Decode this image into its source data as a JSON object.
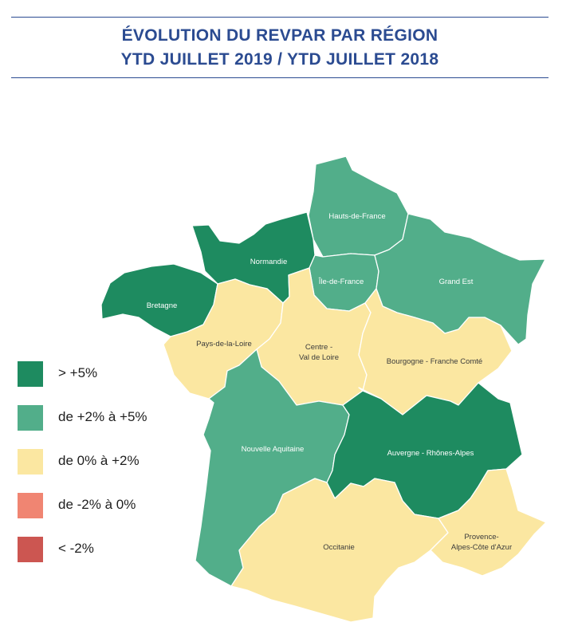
{
  "header": {
    "title_line1": "ÉVOLUTION DU REVPAR PAR RÉGION",
    "title_line2": "YTD JUILLET 2019 / YTD JUILLET 2018"
  },
  "colors": {
    "gt5": "#1e8b60",
    "2to5": "#52ae8a",
    "0to2": "#fbe7a1",
    "m2to0": "#f08572",
    "ltm2": "#cc5651"
  },
  "legend": [
    {
      "key": "gt5",
      "label": "> +5%"
    },
    {
      "key": "2to5",
      "label": "de +2% à +5%"
    },
    {
      "key": "0to2",
      "label": "de 0% à +2%"
    },
    {
      "key": "m2to0",
      "label": "de -2% à 0%"
    },
    {
      "key": "ltm2",
      "label": "< -2%"
    }
  ],
  "regions": {
    "hauts_de_france": {
      "name": "Hauts-de-France",
      "class": "2to5"
    },
    "normandie": {
      "name": "Normandie",
      "class": "gt5"
    },
    "bretagne": {
      "name": "Bretagne",
      "class": "gt5"
    },
    "ile_de_france": {
      "name": "Île-de-France",
      "class": "2to5"
    },
    "grand_est": {
      "name": "Grand Est",
      "class": "2to5"
    },
    "pays_de_la_loire": {
      "name": "Pays-de-la-Loire",
      "class": "0to2"
    },
    "centre_val_de_loire": {
      "name_line1": "Centre -",
      "name_line2": "Val de Loire",
      "class": "0to2"
    },
    "bourgogne_franche_comte": {
      "name": "Bourgogne - Franche Comté",
      "class": "0to2"
    },
    "nouvelle_aquitaine": {
      "name": "Nouvelle Aquitaine",
      "class": "2to5"
    },
    "auvergne_rhone_alpes": {
      "name": "Auvergne - Rhônes-Alpes",
      "class": "gt5"
    },
    "occitanie": {
      "name": "Occitanie",
      "class": "0to2"
    },
    "paca": {
      "name_line1": "Provence-",
      "name_line2": "Alpes-Côte d'Azur",
      "class": "0to2"
    }
  }
}
